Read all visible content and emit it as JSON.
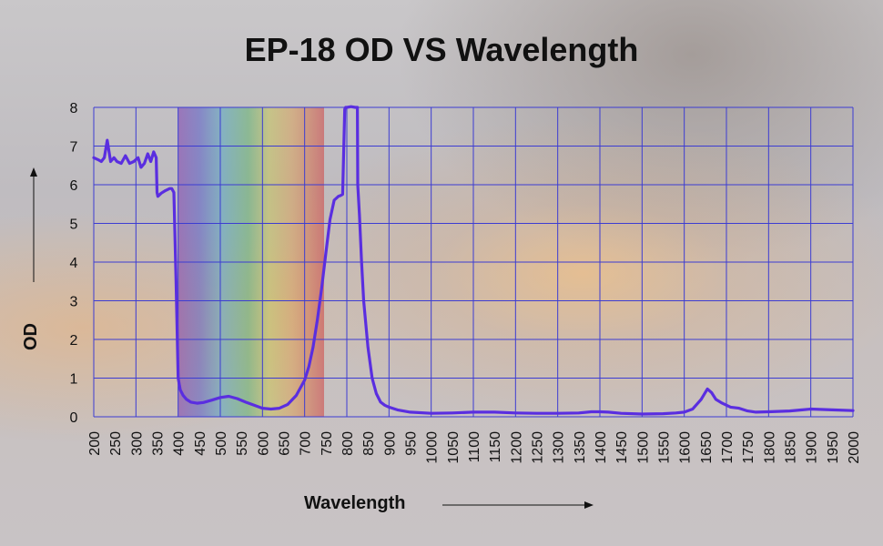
{
  "chart_data": {
    "type": "line",
    "title": "EP-18 OD VS Wavelength",
    "xlabel": "Wavelength",
    "ylabel": "OD",
    "xlim": [
      200,
      2000
    ],
    "ylim": [
      0,
      8
    ],
    "x_ticks": [
      "200",
      "250",
      "300",
      "350",
      "400",
      "450",
      "500",
      "550",
      "600",
      "650",
      "700",
      "750",
      "800",
      "850",
      "900",
      "950",
      "1000",
      "1050",
      "1100",
      "1150",
      "1200",
      "1250",
      "1300",
      "1350",
      "1400",
      "1450",
      "1500",
      "1550",
      "1600",
      "1650",
      "1700",
      "1750",
      "1800",
      "1850",
      "1900",
      "1950",
      "2000"
    ],
    "y_ticks": [
      "0",
      "1",
      "2",
      "3",
      "4",
      "5",
      "6",
      "7",
      "8"
    ],
    "grid": true,
    "colors": {
      "line": "#5a2ee0",
      "grid": "#3c3cd2"
    },
    "series": [
      {
        "x": [
          200,
          210,
          218,
          225,
          232,
          240,
          248,
          255,
          265,
          275,
          285,
          295,
          305,
          312,
          320,
          328,
          335,
          342,
          348,
          350,
          352,
          360,
          370,
          380,
          385,
          390,
          395,
          400,
          405,
          412,
          420,
          430,
          445,
          460,
          480,
          500,
          520,
          540,
          560,
          580,
          600,
          620,
          640,
          660,
          680,
          700,
          710,
          720,
          730,
          740,
          750,
          760,
          770,
          780,
          785,
          790,
          795,
          797,
          800,
          810,
          820,
          825,
          826,
          830,
          835,
          840,
          850,
          860,
          870,
          880,
          890,
          900,
          920,
          950,
          1000,
          1050,
          1100,
          1150,
          1200,
          1250,
          1300,
          1350,
          1380,
          1400,
          1420,
          1450,
          1500,
          1550,
          1580,
          1600,
          1620,
          1640,
          1655,
          1665,
          1675,
          1690,
          1710,
          1730,
          1750,
          1770,
          1800,
          1850,
          1880,
          1900,
          1950,
          2000
        ],
        "y": [
          6.7,
          6.65,
          6.6,
          6.7,
          7.15,
          6.6,
          6.7,
          6.6,
          6.55,
          6.75,
          6.55,
          6.6,
          6.7,
          6.45,
          6.55,
          6.8,
          6.6,
          6.85,
          6.7,
          5.8,
          5.7,
          5.78,
          5.85,
          5.9,
          5.9,
          5.8,
          3.5,
          1.0,
          0.7,
          0.55,
          0.45,
          0.38,
          0.35,
          0.37,
          0.43,
          0.5,
          0.53,
          0.47,
          0.38,
          0.3,
          0.22,
          0.2,
          0.22,
          0.32,
          0.55,
          0.95,
          1.3,
          1.8,
          2.5,
          3.3,
          4.2,
          5.1,
          5.6,
          5.7,
          5.72,
          5.75,
          7.95,
          8.0,
          8.0,
          8.02,
          8.0,
          8.0,
          6.0,
          5.2,
          4.0,
          3.0,
          1.8,
          1.0,
          0.6,
          0.38,
          0.3,
          0.25,
          0.18,
          0.12,
          0.09,
          0.1,
          0.12,
          0.12,
          0.1,
          0.09,
          0.09,
          0.1,
          0.13,
          0.13,
          0.12,
          0.09,
          0.07,
          0.08,
          0.1,
          0.12,
          0.2,
          0.45,
          0.72,
          0.62,
          0.45,
          0.35,
          0.25,
          0.22,
          0.15,
          0.12,
          0.13,
          0.15,
          0.18,
          0.2,
          0.18,
          0.16
        ]
      }
    ]
  }
}
